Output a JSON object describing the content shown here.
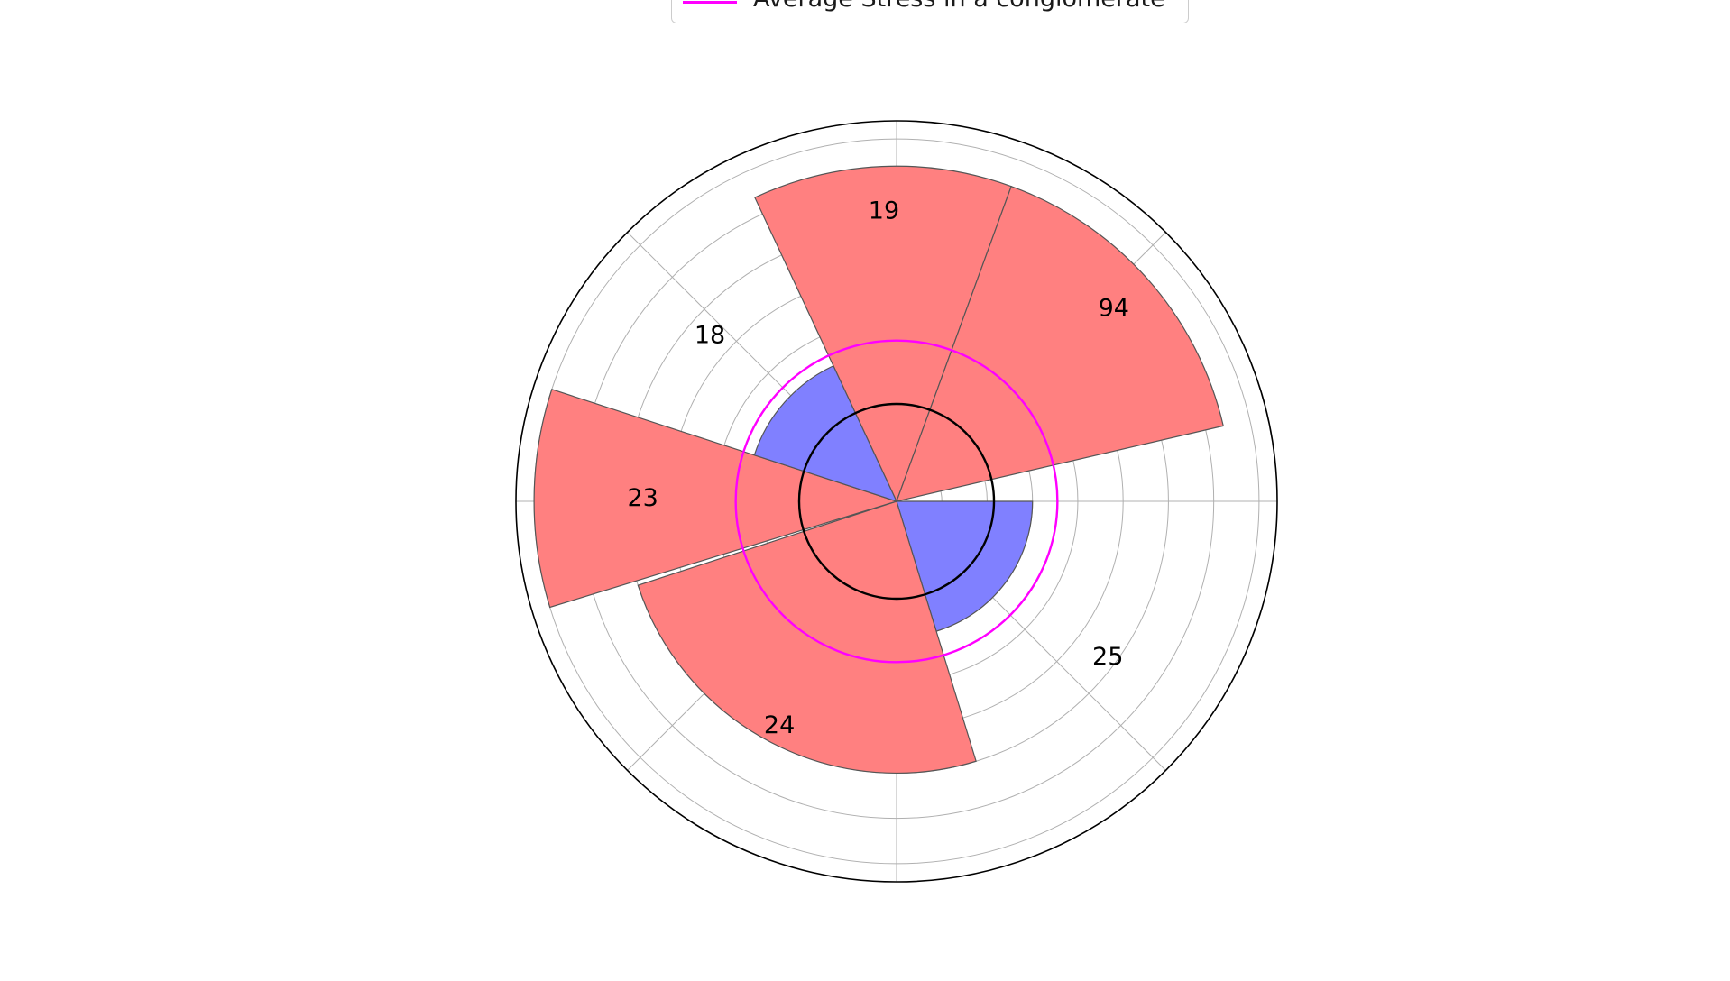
{
  "chart_data": {
    "type": "polar-bar",
    "legend": [
      {
        "name": "Average Stress in a conglomerate",
        "color": "#ff00ff"
      }
    ],
    "sectors": [
      {
        "label": "19",
        "value": 19,
        "start_deg": 20,
        "end_deg": 100,
        "color": "#ff8080"
      },
      {
        "label": "94",
        "value": 94,
        "start_deg": 78,
        "end_deg": 100,
        "color": "#ff8080",
        "note": ""
      },
      {
        "label": "25",
        "value": 25,
        "start_deg": 0,
        "end_deg": 0,
        "color": "#8080ff"
      },
      {
        "label": "24",
        "value": 24,
        "start_deg": 0,
        "end_deg": 0,
        "color": "#ff8080"
      },
      {
        "label": "23",
        "value": 23,
        "start_deg": 0,
        "end_deg": 0,
        "color": "#ff8080"
      },
      {
        "label": "18",
        "value": 18,
        "start_deg": 0,
        "end_deg": 0,
        "color": "#8080ff"
      }
    ],
    "bars": [
      {
        "label": "19",
        "start_deg": 70,
        "end_deg": 115,
        "r": 7.4,
        "color": "#ff8080"
      },
      {
        "label": "94",
        "start_deg": 13,
        "end_deg": 70,
        "r": 7.4,
        "color": "#ff8080"
      },
      {
        "label": "25",
        "start_deg": -73,
        "end_deg": 0,
        "r": 3.0,
        "color": "#8080ff"
      },
      {
        "label": "24",
        "start_deg": -162,
        "end_deg": -73,
        "r": 6.0,
        "color": "#ff8080"
      },
      {
        "label": "23",
        "start_deg": 162,
        "end_deg": 197,
        "r": 8.0,
        "color": "#ff8080"
      },
      {
        "label": "18",
        "start_deg": 115,
        "end_deg": 162,
        "r": 3.3,
        "color": "#8080ff"
      }
    ],
    "reference_circles": [
      {
        "name": "Average Stress in a conglomerate",
        "r": 3.55,
        "color": "#ff00ff"
      },
      {
        "name": "",
        "r": 2.15,
        "color": "#000000"
      }
    ],
    "r_max": 8.4,
    "r_gridlines": [
      1,
      2,
      3,
      4,
      5,
      6,
      7,
      8
    ],
    "theta_gridlines_deg": [
      0,
      45,
      90,
      135,
      180,
      225,
      270,
      315
    ],
    "grid": true
  }
}
